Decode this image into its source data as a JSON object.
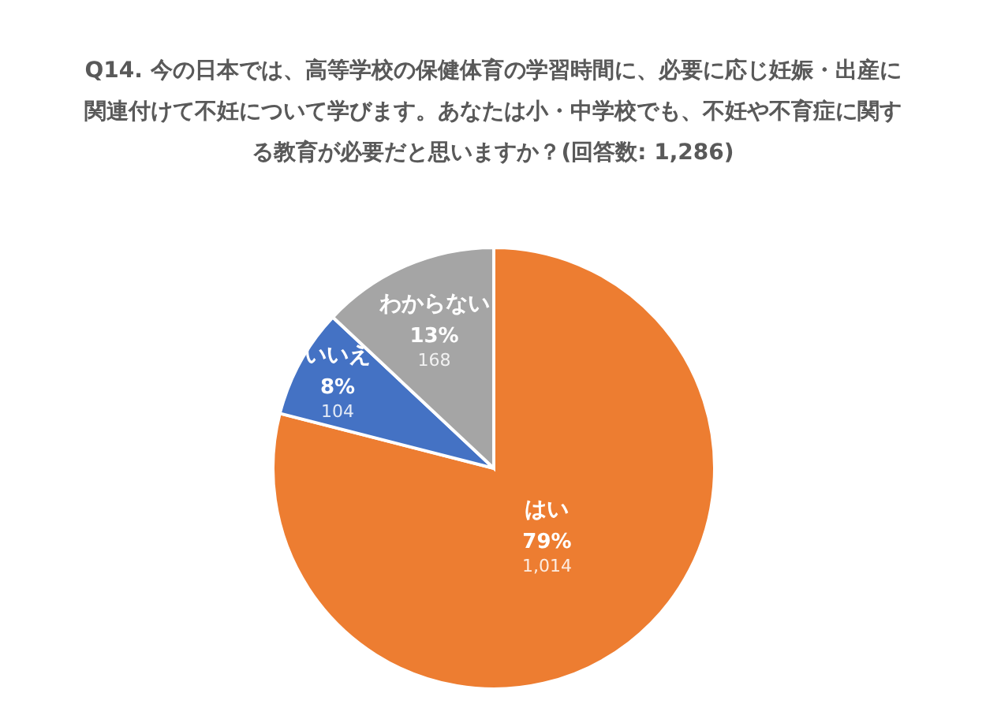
{
  "chart_data": {
    "type": "pie",
    "title": "Q14. 今の日本では、高等学校の保健体育の学習時間に、必要に応じ妊娠・出産に関連付けて不妊について学びます。あなたは小・中学校でも、不妊や不育症に関する教育が必要だと思いますか？(回答数: 1,286)",
    "categories": [
      "はい",
      "いいえ",
      "わからない"
    ],
    "values": [
      79,
      8,
      13
    ],
    "value_labels": [
      "79%",
      "8%",
      "13%"
    ],
    "annotations": [
      "1,014",
      "104",
      "168"
    ],
    "colors": [
      "#ed7d31",
      "#4472c4",
      "#a5a5a5"
    ],
    "legend": false
  }
}
